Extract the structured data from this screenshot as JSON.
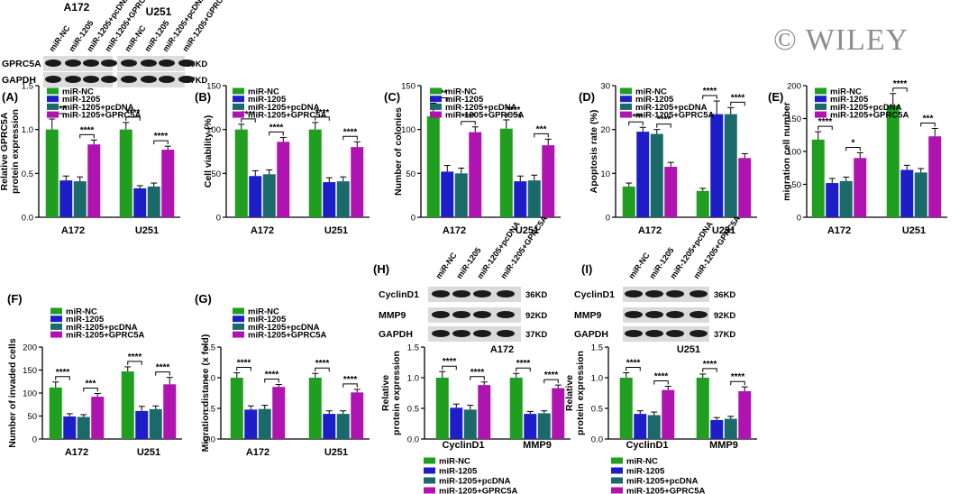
{
  "watermark": "© WILEY",
  "legend_labels": [
    "miR-NC",
    "miR-1205",
    "miR-1205+pcDNA",
    "miR-1205+GPRC5A"
  ],
  "series_colors": [
    "#1f9e1f",
    "#1e1ec8",
    "#1a6a6a",
    "#b014b0"
  ],
  "blots": {
    "top": {
      "group_labels": [
        "A172",
        "U251"
      ],
      "lane_labels": [
        "miR-NC",
        "miR-1205",
        "miR-1205+pcDNA",
        "miR-1205+GPRC5A"
      ],
      "rows": [
        {
          "protein": "GPRC5A",
          "size": "40KD"
        },
        {
          "protein": "GAPDH",
          "size": "37KD"
        }
      ]
    },
    "H": {
      "cell_line": "A172",
      "lane_labels": [
        "miR-NC",
        "miR-1205",
        "miR-1205+pcDNA",
        "miR-1205+GPRC5A"
      ],
      "rows": [
        {
          "protein": "CyclinD1",
          "size": "36KD"
        },
        {
          "protein": "MMP9",
          "size": "92KD"
        },
        {
          "protein": "GAPDH",
          "size": "37KD"
        }
      ]
    },
    "I": {
      "cell_line": "U251",
      "lane_labels": [
        "miR-NC",
        "miR-1205",
        "miR-1205+pcDNA",
        "miR-1205+GPRC5A"
      ],
      "rows": [
        {
          "protein": "CyclinD1",
          "size": "36KD"
        },
        {
          "protein": "MMP9",
          "size": "92KD"
        },
        {
          "protein": "GAPDH",
          "size": "37KD"
        }
      ]
    }
  },
  "chart_data": [
    {
      "id": "A",
      "panel_label": "(A)",
      "type": "bar",
      "ylabel": [
        "Relative GPRC5A",
        "protein expression"
      ],
      "categories": [
        "A172",
        "U251"
      ],
      "ylim": [
        0,
        1.5
      ],
      "yticks": [
        0,
        0.5,
        1.0,
        1.5
      ],
      "series": [
        {
          "name": "miR-NC",
          "values": [
            1.0,
            1.0
          ],
          "errors": [
            0.12,
            0.08
          ]
        },
        {
          "name": "miR-1205",
          "values": [
            0.42,
            0.33
          ],
          "errors": [
            0.05,
            0.03
          ]
        },
        {
          "name": "miR-1205+pcDNA",
          "values": [
            0.41,
            0.35
          ],
          "errors": [
            0.05,
            0.04
          ]
        },
        {
          "name": "miR-1205+GPRC5A",
          "values": [
            0.83,
            0.77
          ],
          "errors": [
            0.05,
            0.04
          ]
        }
      ],
      "significance": [
        {
          "cat": 0,
          "s1": 0,
          "s2": 1,
          "label": "****"
        },
        {
          "cat": 0,
          "s1": 2,
          "s2": 3,
          "label": "****"
        },
        {
          "cat": 1,
          "s1": 0,
          "s2": 1,
          "label": "****"
        },
        {
          "cat": 1,
          "s1": 2,
          "s2": 3,
          "label": "****"
        }
      ]
    },
    {
      "id": "B",
      "panel_label": "(B)",
      "type": "bar",
      "ylabel": [
        "Cell viability (%)"
      ],
      "categories": [
        "A172",
        "U251"
      ],
      "ylim": [
        0,
        150
      ],
      "yticks": [
        0,
        50,
        100,
        150
      ],
      "series": [
        {
          "name": "miR-NC",
          "values": [
            100,
            100
          ],
          "errors": [
            6,
            8
          ]
        },
        {
          "name": "miR-1205",
          "values": [
            47,
            40
          ],
          "errors": [
            6,
            5
          ]
        },
        {
          "name": "miR-1205+pcDNA",
          "values": [
            49,
            41
          ],
          "errors": [
            5,
            5
          ]
        },
        {
          "name": "miR-1205+GPRC5A",
          "values": [
            86,
            80
          ],
          "errors": [
            5,
            6
          ]
        }
      ],
      "significance": [
        {
          "cat": 0,
          "s1": 0,
          "s2": 1,
          "label": "****"
        },
        {
          "cat": 0,
          "s1": 2,
          "s2": 3,
          "label": "****"
        },
        {
          "cat": 1,
          "s1": 0,
          "s2": 1,
          "label": "****"
        },
        {
          "cat": 1,
          "s1": 2,
          "s2": 3,
          "label": "****"
        }
      ]
    },
    {
      "id": "C",
      "panel_label": "(C)",
      "type": "bar",
      "ylabel": [
        "Number of colonies"
      ],
      "categories": [
        "A172",
        "U251"
      ],
      "ylim": [
        0,
        150
      ],
      "yticks": [
        0,
        50,
        100,
        150
      ],
      "series": [
        {
          "name": "miR-NC",
          "values": [
            115,
            101
          ],
          "errors": [
            15,
            10
          ]
        },
        {
          "name": "miR-1205",
          "values": [
            52,
            41
          ],
          "errors": [
            7,
            6
          ]
        },
        {
          "name": "miR-1205+pcDNA",
          "values": [
            50,
            42
          ],
          "errors": [
            6,
            6
          ]
        },
        {
          "name": "miR-1205+GPRC5A",
          "values": [
            97,
            82
          ],
          "errors": [
            6,
            7
          ]
        }
      ],
      "significance": [
        {
          "cat": 0,
          "s1": 0,
          "s2": 1,
          "label": "****"
        },
        {
          "cat": 0,
          "s1": 2,
          "s2": 3,
          "label": "****"
        },
        {
          "cat": 1,
          "s1": 0,
          "s2": 1,
          "label": "****"
        },
        {
          "cat": 1,
          "s1": 2,
          "s2": 3,
          "label": "***"
        }
      ]
    },
    {
      "id": "D",
      "panel_label": "(D)",
      "type": "bar",
      "ylabel": [
        "Apoptosis rate (%)"
      ],
      "categories": [
        "A172",
        "U251"
      ],
      "ylim": [
        0,
        30
      ],
      "yticks": [
        0,
        10,
        20,
        30
      ],
      "series": [
        {
          "name": "miR-NC",
          "values": [
            7,
            6
          ],
          "errors": [
            0.8,
            0.6
          ]
        },
        {
          "name": "miR-1205",
          "values": [
            19.5,
            23.5
          ],
          "errors": [
            1.0,
            3.0
          ]
        },
        {
          "name": "miR-1205+pcDNA",
          "values": [
            19,
            23.5
          ],
          "errors": [
            1.0,
            1.5
          ]
        },
        {
          "name": "miR-1205+GPRC5A",
          "values": [
            11.5,
            13.5
          ],
          "errors": [
            1.0,
            1.0
          ]
        }
      ],
      "significance": [
        {
          "cat": 0,
          "s1": 0,
          "s2": 1,
          "label": "****"
        },
        {
          "cat": 0,
          "s1": 2,
          "s2": 3,
          "label": "****"
        },
        {
          "cat": 1,
          "s1": 0,
          "s2": 1,
          "label": "****"
        },
        {
          "cat": 1,
          "s1": 2,
          "s2": 3,
          "label": "****"
        }
      ]
    },
    {
      "id": "E",
      "panel_label": "(E)",
      "type": "bar",
      "ylabel": [
        "migration cell number"
      ],
      "categories": [
        "A172",
        "U251"
      ],
      "ylim": [
        0,
        200
      ],
      "yticks": [
        0,
        50,
        100,
        150,
        200
      ],
      "series": [
        {
          "name": "miR-NC",
          "values": [
            118,
            170
          ],
          "errors": [
            12,
            18
          ]
        },
        {
          "name": "miR-1205",
          "values": [
            52,
            72
          ],
          "errors": [
            7,
            7
          ]
        },
        {
          "name": "miR-1205+pcDNA",
          "values": [
            55,
            68
          ],
          "errors": [
            6,
            6
          ]
        },
        {
          "name": "miR-1205+GPRC5A",
          "values": [
            90,
            123
          ],
          "errors": [
            8,
            12
          ]
        }
      ],
      "significance": [
        {
          "cat": 0,
          "s1": 0,
          "s2": 1,
          "label": "****"
        },
        {
          "cat": 0,
          "s1": 2,
          "s2": 3,
          "label": "*"
        },
        {
          "cat": 1,
          "s1": 0,
          "s2": 1,
          "label": "****"
        },
        {
          "cat": 1,
          "s1": 2,
          "s2": 3,
          "label": "***"
        }
      ]
    },
    {
      "id": "F",
      "panel_label": "(F)",
      "type": "bar",
      "ylabel": [
        "Number of invaded cells"
      ],
      "categories": [
        "A172",
        "U251"
      ],
      "ylim": [
        0,
        200
      ],
      "yticks": [
        0,
        50,
        100,
        150,
        200
      ],
      "series": [
        {
          "name": "miR-NC",
          "values": [
            112,
            147
          ],
          "errors": [
            12,
            10
          ]
        },
        {
          "name": "miR-1205",
          "values": [
            49,
            61
          ],
          "errors": [
            6,
            10
          ]
        },
        {
          "name": "miR-1205+pcDNA",
          "values": [
            48,
            65
          ],
          "errors": [
            5,
            7
          ]
        },
        {
          "name": "miR-1205+GPRC5A",
          "values": [
            92,
            119
          ],
          "errors": [
            7,
            15
          ]
        }
      ],
      "significance": [
        {
          "cat": 0,
          "s1": 0,
          "s2": 1,
          "label": "****"
        },
        {
          "cat": 0,
          "s1": 2,
          "s2": 3,
          "label": "***"
        },
        {
          "cat": 1,
          "s1": 0,
          "s2": 1,
          "label": "****"
        },
        {
          "cat": 1,
          "s1": 2,
          "s2": 3,
          "label": "****"
        }
      ]
    },
    {
      "id": "G",
      "panel_label": "(G)",
      "type": "bar",
      "ylabel": [
        "Migration distance (x fold)"
      ],
      "categories": [
        "A172",
        "U251"
      ],
      "ylim": [
        0,
        1.5
      ],
      "yticks": [
        0,
        0.5,
        1.0,
        1.5
      ],
      "series": [
        {
          "name": "miR-NC",
          "values": [
            1.0,
            1.0
          ],
          "errors": [
            0.08,
            0.07
          ]
        },
        {
          "name": "miR-1205",
          "values": [
            0.48,
            0.41
          ],
          "errors": [
            0.06,
            0.05
          ]
        },
        {
          "name": "miR-1205+pcDNA",
          "values": [
            0.49,
            0.41
          ],
          "errors": [
            0.06,
            0.05
          ]
        },
        {
          "name": "miR-1205+GPRC5A",
          "values": [
            0.85,
            0.76
          ],
          "errors": [
            0.04,
            0.05
          ]
        }
      ],
      "significance": [
        {
          "cat": 0,
          "s1": 0,
          "s2": 1,
          "label": "****"
        },
        {
          "cat": 0,
          "s1": 2,
          "s2": 3,
          "label": "****"
        },
        {
          "cat": 1,
          "s1": 0,
          "s2": 1,
          "label": "****"
        },
        {
          "cat": 1,
          "s1": 2,
          "s2": 3,
          "label": "****"
        }
      ]
    },
    {
      "id": "H",
      "panel_label": "(H)",
      "type": "bar",
      "ylabel": [
        "Relative",
        "protein expression"
      ],
      "categories": [
        "CyclinD1",
        "MMP9"
      ],
      "ylim": [
        0,
        1.5
      ],
      "yticks": [
        0,
        0.5,
        1.0,
        1.5
      ],
      "series": [
        {
          "name": "miR-NC",
          "values": [
            1.0,
            1.0
          ],
          "errors": [
            0.1,
            0.07
          ]
        },
        {
          "name": "miR-1205",
          "values": [
            0.51,
            0.41
          ],
          "errors": [
            0.06,
            0.04
          ]
        },
        {
          "name": "miR-1205+pcDNA",
          "values": [
            0.48,
            0.42
          ],
          "errors": [
            0.07,
            0.04
          ]
        },
        {
          "name": "miR-1205+GPRC5A",
          "values": [
            0.88,
            0.83
          ],
          "errors": [
            0.05,
            0.05
          ]
        }
      ],
      "significance": [
        {
          "cat": 0,
          "s1": 0,
          "s2": 1,
          "label": "****"
        },
        {
          "cat": 0,
          "s1": 2,
          "s2": 3,
          "label": "****"
        },
        {
          "cat": 1,
          "s1": 0,
          "s2": 1,
          "label": "****"
        },
        {
          "cat": 1,
          "s1": 2,
          "s2": 3,
          "label": "****"
        }
      ]
    },
    {
      "id": "I",
      "panel_label": "(I)",
      "type": "bar",
      "ylabel": [
        "Relative",
        "protein expression"
      ],
      "categories": [
        "CyclinD1",
        "MMP9"
      ],
      "ylim": [
        0,
        1.5
      ],
      "yticks": [
        0,
        0.5,
        1.0,
        1.5
      ],
      "series": [
        {
          "name": "miR-NC",
          "values": [
            1.0,
            1.0
          ],
          "errors": [
            0.08,
            0.06
          ]
        },
        {
          "name": "miR-1205",
          "values": [
            0.41,
            0.31
          ],
          "errors": [
            0.05,
            0.04
          ]
        },
        {
          "name": "miR-1205+pcDNA",
          "values": [
            0.39,
            0.33
          ],
          "errors": [
            0.05,
            0.04
          ]
        },
        {
          "name": "miR-1205+GPRC5A",
          "values": [
            0.8,
            0.78
          ],
          "errors": [
            0.06,
            0.07
          ]
        }
      ],
      "significance": [
        {
          "cat": 0,
          "s1": 0,
          "s2": 1,
          "label": "****"
        },
        {
          "cat": 0,
          "s1": 2,
          "s2": 3,
          "label": "****"
        },
        {
          "cat": 1,
          "s1": 0,
          "s2": 1,
          "label": "****"
        },
        {
          "cat": 1,
          "s1": 2,
          "s2": 3,
          "label": "****"
        }
      ]
    }
  ]
}
